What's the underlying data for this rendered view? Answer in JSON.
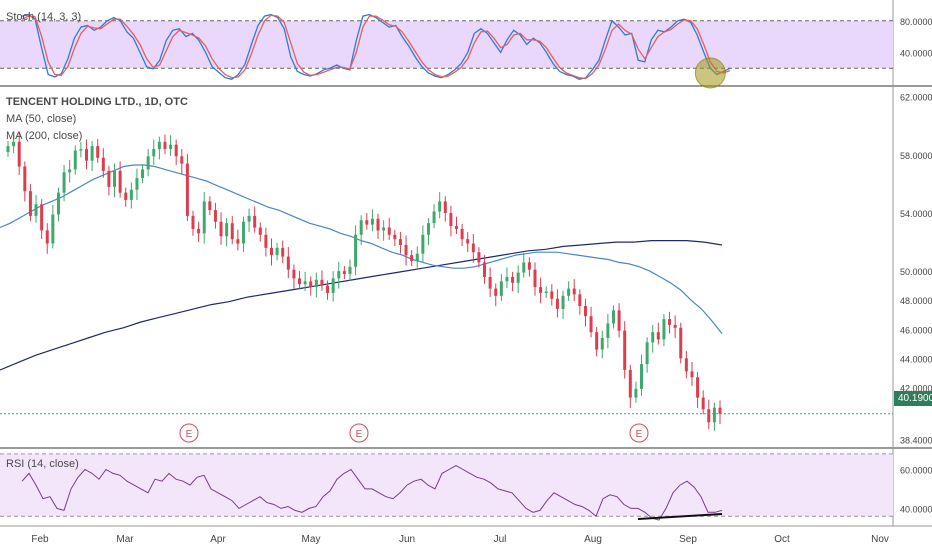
{
  "chart_data": [
    {
      "type": "line",
      "pane": "stochastic",
      "title": "Stoch (14, 3, 3)",
      "ylim": [
        0,
        100
      ],
      "y_ticks": [
        {
          "value": 80,
          "label": "80.0000"
        },
        {
          "value": 40,
          "label": "40.0000"
        }
      ],
      "band": [
        20,
        80
      ],
      "series": [
        {
          "color": "#2f7bd8",
          "values": [
            86,
            88,
            82,
            45,
            12,
            9,
            13,
            32,
            58,
            72,
            74,
            68,
            72,
            80,
            84,
            80,
            66,
            58,
            40,
            22,
            19,
            30,
            55,
            68,
            70,
            60,
            64,
            55,
            40,
            22,
            15,
            8,
            6,
            12,
            25,
            50,
            74,
            86,
            88,
            84,
            70,
            34,
            16,
            12,
            10,
            13,
            18,
            20,
            24,
            20,
            18,
            55,
            86,
            88,
            84,
            78,
            72,
            74,
            60,
            48,
            34,
            22,
            14,
            10,
            8,
            12,
            18,
            26,
            40,
            64,
            70,
            64,
            52,
            40,
            56,
            68,
            62,
            50,
            58,
            52,
            40,
            26,
            16,
            12,
            10,
            6,
            8,
            18,
            30,
            56,
            80,
            72,
            62,
            64,
            30,
            28,
            56,
            68,
            66,
            72,
            80,
            82,
            78,
            62,
            40,
            20,
            12,
            16,
            20
          ]
        },
        {
          "color": "#e85d5d",
          "values": [
            82,
            86,
            85,
            60,
            28,
            12,
            11,
            22,
            45,
            64,
            73,
            71,
            70,
            76,
            82,
            82,
            73,
            63,
            50,
            32,
            21,
            24,
            42,
            60,
            68,
            65,
            62,
            58,
            48,
            32,
            20,
            12,
            8,
            9,
            18,
            38,
            62,
            80,
            87,
            86,
            78,
            52,
            26,
            15,
            11,
            12,
            15,
            18,
            21,
            21,
            19,
            40,
            72,
            86,
            86,
            81,
            75,
            73,
            66,
            54,
            41,
            28,
            18,
            12,
            9,
            10,
            15,
            21,
            32,
            52,
            66,
            67,
            58,
            46,
            50,
            62,
            64,
            56,
            56,
            54,
            46,
            33,
            21,
            14,
            11,
            8,
            7,
            13,
            24,
            44,
            68,
            76,
            68,
            63,
            44,
            32,
            46,
            60,
            66,
            69,
            76,
            81,
            80,
            70,
            50,
            28,
            16,
            14,
            17
          ]
        }
      ]
    },
    {
      "type": "candlestick",
      "pane": "price",
      "title": "TENCENT HOLDING LTD., 1D, OTC",
      "ylim": [
        37.9,
        62.6
      ],
      "y_ticks": [
        {
          "value": 62,
          "label": "62.0000"
        },
        {
          "value": 58,
          "label": "58.0000"
        },
        {
          "value": 54,
          "label": "54.0000"
        },
        {
          "value": 50,
          "label": "50.0000"
        },
        {
          "value": 48,
          "label": "48.0000"
        },
        {
          "value": 46,
          "label": "46.0000"
        },
        {
          "value": 44,
          "label": "44.0000"
        },
        {
          "value": 42,
          "label": "42.0000"
        },
        {
          "value": 38.4,
          "label": "38.4000"
        }
      ],
      "last_price": 40.19,
      "last_price_label": "40.1900",
      "colors": {
        "up": "#3ea96b",
        "down": "#dd3d4e",
        "ma50": "#4a86c8",
        "ma200": "#1f2a6b",
        "last_line": "#3ea96b"
      },
      "ohlc_closes": [
        58.6,
        58.9,
        57.2,
        55.5,
        53.8,
        54.6,
        52.8,
        51.9,
        53.9,
        55.4,
        56.8,
        57.0,
        58.3,
        58.4,
        57.6,
        58.6,
        57.8,
        56.9,
        55.8,
        56.9,
        55.4,
        54.9,
        55.6,
        56.4,
        57.0,
        57.9,
        58.4,
        58.9,
        58.4,
        58.7,
        57.9,
        57.4,
        53.8,
        52.9,
        52.6,
        54.8,
        54.2,
        53.4,
        52.4,
        53.3,
        52.2,
        51.9,
        53.4,
        53.8,
        53.0,
        52.5,
        51.6,
        51.1,
        51.6,
        51.0,
        50.1,
        49.5,
        49.1,
        49.3,
        48.9,
        49.4,
        49.0,
        48.5,
        49.5,
        50.0,
        49.8,
        50.3,
        52.5,
        53.5,
        53.2,
        53.6,
        52.8,
        53.0,
        52.5,
        52.2,
        51.8,
        51.1,
        50.7,
        51.2,
        52.5,
        53.3,
        54.1,
        54.8,
        54.0,
        53.1,
        52.9,
        52.2,
        51.9,
        51.3,
        50.6,
        49.6,
        48.8,
        48.3,
        49.3,
        49.6,
        49.2,
        49.9,
        50.6,
        50.1,
        48.9,
        48.5,
        48.6,
        48.1,
        47.4,
        48.3,
        48.8,
        48.4,
        47.6,
        46.9,
        45.8,
        44.6,
        45.4,
        46.4,
        47.3,
        45.9,
        43.2,
        41.3,
        41.9,
        43.6,
        45.1,
        45.8,
        45.3,
        46.7,
        46.3,
        46.1,
        44.0,
        43.1,
        42.7,
        41.3,
        40.5,
        39.6,
        40.6,
        40.19
      ],
      "ma50": [
        53.0,
        53.3,
        53.7,
        54.1,
        54.5,
        54.8,
        55.1,
        55.5,
        55.9,
        56.3,
        56.6,
        56.9,
        57.2,
        57.3,
        57.3,
        57.2,
        57.0,
        56.8,
        56.6,
        56.4,
        56.2,
        55.9,
        55.6,
        55.3,
        55.0,
        54.7,
        54.4,
        54.2,
        53.9,
        53.6,
        53.3,
        53.1,
        52.9,
        52.6,
        52.4,
        52.1,
        51.9,
        51.6,
        51.3,
        51.1,
        50.8,
        50.6,
        50.4,
        50.3,
        50.2,
        50.2,
        50.3,
        50.5,
        50.7,
        50.9,
        51.1,
        51.2,
        51.3,
        51.3,
        51.3,
        51.2,
        51.1,
        51.0,
        50.9,
        50.8,
        50.6,
        50.5,
        50.3,
        50.0,
        49.6,
        49.2,
        48.7,
        48.0,
        47.4,
        46.6,
        45.7
      ],
      "ma200": [
        43.2,
        43.7,
        44.2,
        44.6,
        45.0,
        45.4,
        45.8,
        46.1,
        46.5,
        46.8,
        47.1,
        47.4,
        47.7,
        47.9,
        48.2,
        48.4,
        48.6,
        48.8,
        49.0,
        49.2,
        49.4,
        49.6,
        49.8,
        50.0,
        50.2,
        50.4,
        50.6,
        50.8,
        51.0,
        51.2,
        51.4,
        51.5,
        51.7,
        51.8,
        51.9,
        52.0,
        52.0,
        52.1,
        52.1,
        52.1,
        52.0,
        51.8
      ],
      "legend": [
        "MA (50, close)",
        "MA (200, close)"
      ],
      "annotations": [
        "E",
        "E",
        "E"
      ]
    },
    {
      "type": "line",
      "pane": "rsi",
      "title": "RSI (14, close)",
      "ylim": [
        32,
        70
      ],
      "y_ticks": [
        {
          "value": 60,
          "label": "60.0000"
        },
        {
          "value": 40,
          "label": "40.0000"
        }
      ],
      "band": [
        36,
        68
      ],
      "series": [
        {
          "color": "#7b3a8a",
          "values": [
            54,
            58,
            52,
            45,
            46,
            40,
            39,
            50,
            56,
            60,
            58,
            55,
            60,
            58,
            57,
            54,
            52,
            50,
            48,
            55,
            54,
            58,
            55,
            54,
            52,
            56,
            57,
            50,
            48,
            46,
            44,
            40,
            42,
            44,
            46,
            43,
            42,
            40,
            41,
            39,
            38,
            40,
            41,
            46,
            49,
            55,
            58,
            60,
            55,
            50,
            50,
            48,
            46,
            45,
            48,
            52,
            54,
            55,
            52,
            50,
            58,
            60,
            62,
            60,
            58,
            56,
            55,
            53,
            50,
            49,
            48,
            44,
            40,
            38,
            39,
            44,
            48,
            46,
            44,
            42,
            41,
            39,
            36,
            45,
            47,
            46,
            42,
            40,
            40,
            38,
            35,
            34,
            40,
            48,
            52,
            54,
            51,
            46,
            38,
            38,
            39
          ]
        }
      ],
      "divergence_line": true
    }
  ],
  "x_axis": {
    "labels": [
      "Feb",
      "Mar",
      "Apr",
      "May",
      "Jun",
      "Jul",
      "Aug",
      "Sep",
      "Oct",
      "Nov"
    ]
  }
}
